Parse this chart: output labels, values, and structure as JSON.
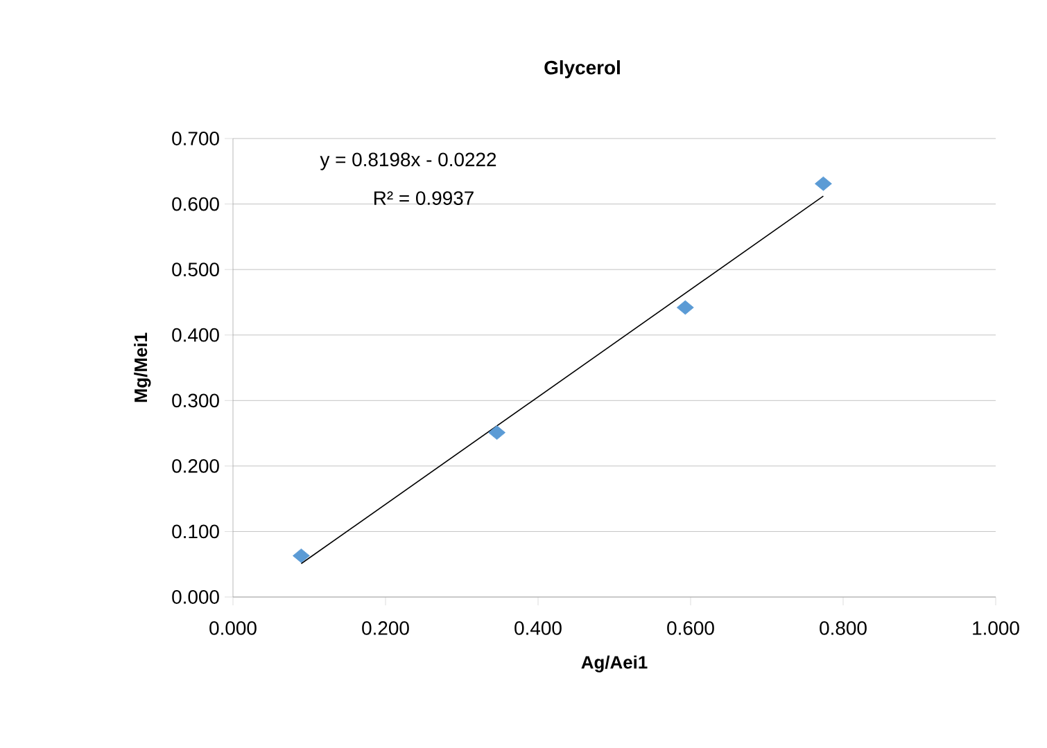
{
  "chart_data": {
    "type": "scatter",
    "title": "Glycerol",
    "xlabel": "Ag/Aei1",
    "ylabel": "Mg/Mei1",
    "xlim": [
      0,
      1
    ],
    "ylim": [
      0,
      0.7
    ],
    "xticks": [
      {
        "value": 0,
        "label": "0.000"
      },
      {
        "value": 0.2,
        "label": "0.200"
      },
      {
        "value": 0.4,
        "label": "0.400"
      },
      {
        "value": 0.6,
        "label": "0.600"
      },
      {
        "value": 0.8,
        "label": "0.800"
      },
      {
        "value": 1,
        "label": "1.000"
      }
    ],
    "yticks": [
      {
        "value": 0,
        "label": "0.000"
      },
      {
        "value": 0.1,
        "label": "0.100"
      },
      {
        "value": 0.2,
        "label": "0.200"
      },
      {
        "value": 0.3,
        "label": "0.300"
      },
      {
        "value": 0.4,
        "label": "0.400"
      },
      {
        "value": 0.5,
        "label": "0.500"
      },
      {
        "value": 0.6,
        "label": "0.600"
      },
      {
        "value": 0.7,
        "label": "0.700"
      }
    ],
    "grid": "y",
    "annotations": [
      "y = 0.8198x - 0.0222",
      "R² = 0.9937"
    ],
    "series": [
      {
        "color": "#5b9bd5",
        "marker": "diamond",
        "x": [
          0.0895,
          0.346,
          0.593,
          0.774
        ],
        "values": [
          0.063,
          0.251,
          0.442,
          0.631
        ]
      },
      {
        "type": "line",
        "color": "#000000",
        "marker": "none",
        "line_style": "solid",
        "x": [
          0.0895,
          0.774
        ],
        "values": [
          0.051,
          0.612
        ]
      }
    ]
  }
}
